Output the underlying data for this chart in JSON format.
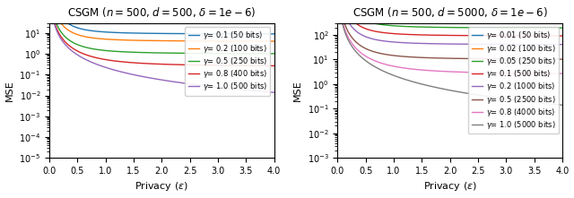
{
  "n": 500,
  "delta": 1e-06,
  "plot1": {
    "d": 500,
    "title": "CSGM ($n = 500$, $d = 500$, $\\delta = 1e-6$)",
    "series": [
      {
        "gamma": 0.1,
        "bits": 50,
        "label": "$\\gamma$= 0.1 (50 bits)",
        "color": "#1f77b4"
      },
      {
        "gamma": 0.2,
        "bits": 100,
        "label": "$\\gamma$= 0.2 (100 bits)",
        "color": "#ff7f0e"
      },
      {
        "gamma": 0.5,
        "bits": 250,
        "label": "$\\gamma$= 0.5 (250 bits)",
        "color": "#2ca02c"
      },
      {
        "gamma": 0.8,
        "bits": 400,
        "label": "$\\gamma$= 0.8 (400 bits)",
        "color": "#d62728"
      },
      {
        "gamma": 1.0,
        "bits": 500,
        "label": "$\\gamma$= 1.0 (500 bits)",
        "color": "#9467bd"
      }
    ],
    "ylim": [
      1e-05,
      30
    ]
  },
  "plot2": {
    "d": 5000,
    "title": "CSGM ($n = 500$, $d = 5000$, $\\delta = 1e-6$)",
    "series": [
      {
        "gamma": 0.01,
        "bits": 50,
        "label": "$\\gamma$= 0.01 (50 bits)",
        "color": "#1f77b4"
      },
      {
        "gamma": 0.02,
        "bits": 100,
        "label": "$\\gamma$= 0.02 (100 bits)",
        "color": "#ff7f0e"
      },
      {
        "gamma": 0.05,
        "bits": 250,
        "label": "$\\gamma$= 0.05 (250 bits)",
        "color": "#2ca02c"
      },
      {
        "gamma": 0.1,
        "bits": 500,
        "label": "$\\gamma$= 0.1 (500 bits)",
        "color": "#d62728"
      },
      {
        "gamma": 0.2,
        "bits": 1000,
        "label": "$\\gamma$= 0.2 (1000 bits)",
        "color": "#9467bd"
      },
      {
        "gamma": 0.5,
        "bits": 2500,
        "label": "$\\gamma$= 0.5 (2500 bits)",
        "color": "#8c564b"
      },
      {
        "gamma": 0.8,
        "bits": 4000,
        "label": "$\\gamma$= 0.8 (4000 bits)",
        "color": "#e377c2"
      },
      {
        "gamma": 1.0,
        "bits": 5000,
        "label": "$\\gamma$= 1.0 (5000 bits)",
        "color": "#7f7f7f"
      }
    ],
    "ylim": [
      0.001,
      300
    ]
  },
  "xlabel": "Privacy ($\\varepsilon$)",
  "ylabel": "MSE",
  "xlim": [
    0.0,
    4.0
  ],
  "figsize": [
    6.4,
    2.21
  ],
  "dpi": 100
}
